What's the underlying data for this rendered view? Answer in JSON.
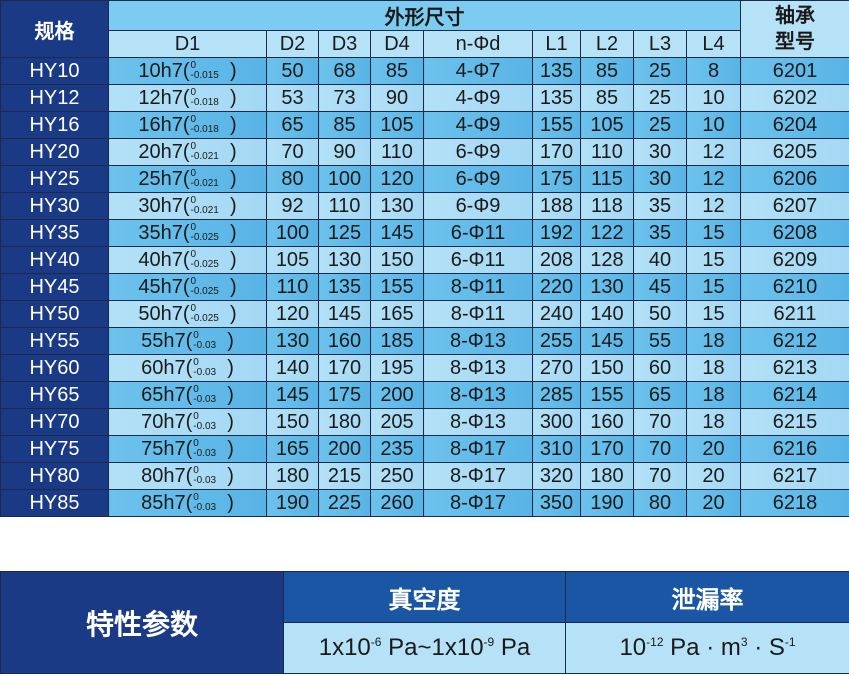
{
  "spec_table": {
    "header": {
      "model": "规格",
      "dimensions": "外形尺寸",
      "bearing": "轴承型号",
      "columns": [
        "D1",
        "D2",
        "D3",
        "D4",
        "n-Φd",
        "L1",
        "L2",
        "L3",
        "L4"
      ]
    },
    "rows": [
      {
        "model": "HY10",
        "d1": "10h7",
        "tol_upper": "0",
        "tol_lower": "-0.015",
        "d2": "50",
        "d3": "68",
        "d4": "85",
        "nd": "4-Φ7",
        "l1": "135",
        "l2": "85",
        "l3": "25",
        "l4": "8",
        "bearing": "6201"
      },
      {
        "model": "HY12",
        "d1": "12h7",
        "tol_upper": "0",
        "tol_lower": "-0.018",
        "d2": "53",
        "d3": "73",
        "d4": "90",
        "nd": "4-Φ9",
        "l1": "135",
        "l2": "85",
        "l3": "25",
        "l4": "10",
        "bearing": "6202"
      },
      {
        "model": "HY16",
        "d1": "16h7",
        "tol_upper": "0",
        "tol_lower": "-0.018",
        "d2": "65",
        "d3": "85",
        "d4": "105",
        "nd": "4-Φ9",
        "l1": "155",
        "l2": "105",
        "l3": "25",
        "l4": "10",
        "bearing": "6204"
      },
      {
        "model": "HY20",
        "d1": "20h7",
        "tol_upper": "0",
        "tol_lower": "-0.021",
        "d2": "70",
        "d3": "90",
        "d4": "110",
        "nd": "6-Φ9",
        "l1": "170",
        "l2": "110",
        "l3": "30",
        "l4": "12",
        "bearing": "6205"
      },
      {
        "model": "HY25",
        "d1": "25h7",
        "tol_upper": "0",
        "tol_lower": "-0.021",
        "d2": "80",
        "d3": "100",
        "d4": "120",
        "nd": "6-Φ9",
        "l1": "175",
        "l2": "115",
        "l3": "30",
        "l4": "12",
        "bearing": "6206"
      },
      {
        "model": "HY30",
        "d1": "30h7",
        "tol_upper": "0",
        "tol_lower": "-0.021",
        "d2": "92",
        "d3": "110",
        "d4": "130",
        "nd": "6-Φ9",
        "l1": "188",
        "l2": "118",
        "l3": "35",
        "l4": "12",
        "bearing": "6207"
      },
      {
        "model": "HY35",
        "d1": "35h7",
        "tol_upper": "0",
        "tol_lower": "-0.025",
        "d2": "100",
        "d3": "125",
        "d4": "145",
        "nd": "6-Φ11",
        "l1": "192",
        "l2": "122",
        "l3": "35",
        "l4": "15",
        "bearing": "6208"
      },
      {
        "model": "HY40",
        "d1": "40h7",
        "tol_upper": "0",
        "tol_lower": "-0.025",
        "d2": "105",
        "d3": "130",
        "d4": "150",
        "nd": "6-Φ11",
        "l1": "208",
        "l2": "128",
        "l3": "40",
        "l4": "15",
        "bearing": "6209"
      },
      {
        "model": "HY45",
        "d1": "45h7",
        "tol_upper": "0",
        "tol_lower": "-0.025",
        "d2": "110",
        "d3": "135",
        "d4": "155",
        "nd": "8-Φ11",
        "l1": "220",
        "l2": "130",
        "l3": "45",
        "l4": "15",
        "bearing": "6210"
      },
      {
        "model": "HY50",
        "d1": "50h7",
        "tol_upper": "0",
        "tol_lower": "-0.025",
        "d2": "120",
        "d3": "145",
        "d4": "165",
        "nd": "8-Φ11",
        "l1": "240",
        "l2": "140",
        "l3": "50",
        "l4": "15",
        "bearing": "6211"
      },
      {
        "model": "HY55",
        "d1": "55h7",
        "tol_upper": "0",
        "tol_lower": "-0.03",
        "d2": "130",
        "d3": "160",
        "d4": "185",
        "nd": "8-Φ13",
        "l1": "255",
        "l2": "145",
        "l3": "55",
        "l4": "18",
        "bearing": "6212"
      },
      {
        "model": "HY60",
        "d1": "60h7",
        "tol_upper": "0",
        "tol_lower": "-0.03",
        "d2": "140",
        "d3": "170",
        "d4": "195",
        "nd": "8-Φ13",
        "l1": "270",
        "l2": "150",
        "l3": "60",
        "l4": "18",
        "bearing": "6213"
      },
      {
        "model": "HY65",
        "d1": "65h7",
        "tol_upper": "0",
        "tol_lower": "-0.03",
        "d2": "145",
        "d3": "175",
        "d4": "200",
        "nd": "8-Φ13",
        "l1": "285",
        "l2": "155",
        "l3": "65",
        "l4": "18",
        "bearing": "6214"
      },
      {
        "model": "HY70",
        "d1": "70h7",
        "tol_upper": "0",
        "tol_lower": "-0.03",
        "d2": "150",
        "d3": "180",
        "d4": "205",
        "nd": "8-Φ13",
        "l1": "300",
        "l2": "160",
        "l3": "70",
        "l4": "18",
        "bearing": "6215"
      },
      {
        "model": "HY75",
        "d1": "75h7",
        "tol_upper": "0",
        "tol_lower": "-0.03",
        "d2": "165",
        "d3": "200",
        "d4": "235",
        "nd": "8-Φ17",
        "l1": "310",
        "l2": "170",
        "l3": "70",
        "l4": "20",
        "bearing": "6216"
      },
      {
        "model": "HY80",
        "d1": "80h7",
        "tol_upper": "0",
        "tol_lower": "-0.03",
        "d2": "180",
        "d3": "215",
        "d4": "250",
        "nd": "8-Φ17",
        "l1": "320",
        "l2": "180",
        "l3": "70",
        "l4": "20",
        "bearing": "6217"
      },
      {
        "model": "HY85",
        "d1": "85h7",
        "tol_upper": "0",
        "tol_lower": "-0.03",
        "d2": "190",
        "d3": "225",
        "d4": "260",
        "nd": "8-Φ17",
        "l1": "350",
        "l2": "190",
        "l3": "80",
        "l4": "20",
        "bearing": "6218"
      }
    ]
  },
  "params": {
    "title": "特性参数",
    "vacuum_label": "真空度",
    "leak_label": "泄漏率",
    "vacuum": {
      "a": "1x10",
      "a_exp": "-6",
      "a_unit": " Pa~1x10",
      "b_exp": "-9",
      "b_unit": " Pa"
    },
    "leak": {
      "base": "10",
      "exp": "-12",
      "unit1": " Pa · m",
      "exp2": "3",
      "unit2": " · S",
      "exp3": "-1"
    }
  },
  "colors": {
    "navy": "#1b3a86",
    "header_blue": "#7ccbf1",
    "row_dark": "#6cc2ec",
    "row_light": "#b3e1f7"
  }
}
